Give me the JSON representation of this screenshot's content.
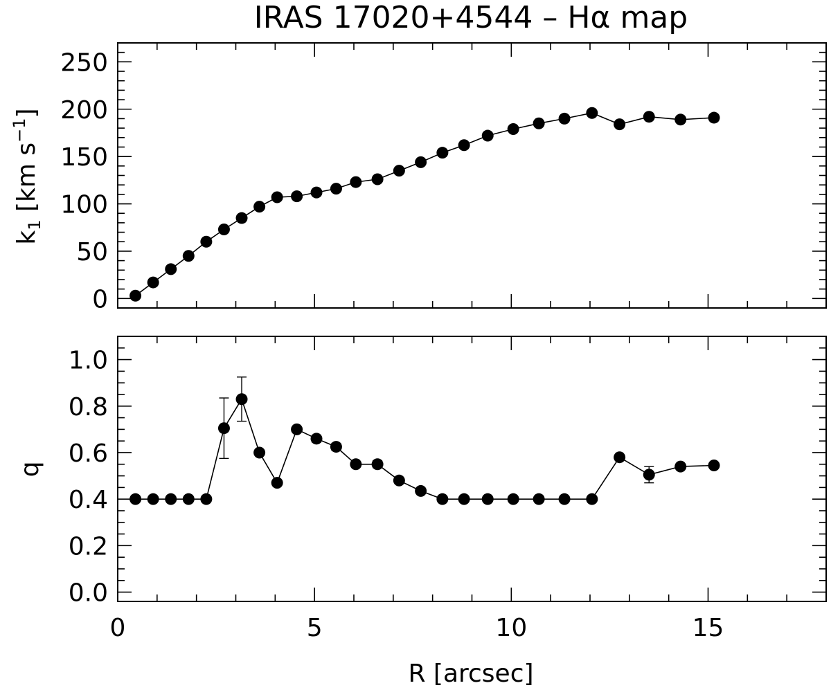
{
  "title": "IRAS 17020+4544 – Hα map",
  "chart_data": [
    {
      "type": "scatter",
      "panel": "top",
      "ylabel_main": "k",
      "ylabel_sub": "1",
      "ylabel_unit": " [km s",
      "ylabel_sup": "−1",
      "ylabel_close": "]",
      "xlim": [
        0,
        18
      ],
      "ylim": [
        -10,
        270
      ],
      "yticks": [
        0,
        50,
        100,
        150,
        200,
        250
      ],
      "ytick_labels": [
        "0",
        "50",
        "100",
        "150",
        "200",
        "250"
      ],
      "yminor_step": 10,
      "xminor_step": 1,
      "line": true,
      "x": [
        0.45,
        0.9,
        1.35,
        1.8,
        2.25,
        2.7,
        3.15,
        3.6,
        4.05,
        4.55,
        5.05,
        5.55,
        6.05,
        6.6,
        7.15,
        7.7,
        8.25,
        8.8,
        9.4,
        10.05,
        10.7,
        11.35,
        12.05,
        12.75,
        13.5,
        14.3,
        15.15
      ],
      "y": [
        3,
        17,
        31,
        45,
        60,
        73,
        85,
        97,
        107,
        108,
        112,
        116,
        123,
        126,
        135,
        144,
        154,
        162,
        172,
        179,
        185,
        190,
        196,
        184,
        192,
        189,
        191
      ]
    },
    {
      "type": "scatter",
      "panel": "bottom",
      "ylabel": "q",
      "xlabel": "R [arcsec]",
      "xlim": [
        0,
        18
      ],
      "ylim": [
        -0.04,
        1.1
      ],
      "xticks": [
        0,
        5,
        10,
        15
      ],
      "xtick_labels": [
        "0",
        "5",
        "10",
        "15"
      ],
      "yticks": [
        0.0,
        0.2,
        0.4,
        0.6,
        0.8,
        1.0
      ],
      "ytick_labels": [
        "0.0",
        "0.2",
        "0.4",
        "0.6",
        "0.8",
        "1.0"
      ],
      "yminor_step": 0.05,
      "xminor_step": 1,
      "line": true,
      "x": [
        0.45,
        0.9,
        1.35,
        1.8,
        2.25,
        2.7,
        3.15,
        3.6,
        4.05,
        4.55,
        5.05,
        5.55,
        6.05,
        6.6,
        7.15,
        7.7,
        8.25,
        8.8,
        9.4,
        10.05,
        10.7,
        11.35,
        12.05,
        12.75,
        13.5,
        14.3,
        15.15
      ],
      "y": [
        0.4,
        0.4,
        0.4,
        0.4,
        0.4,
        0.705,
        0.83,
        0.6,
        0.47,
        0.7,
        0.66,
        0.625,
        0.55,
        0.55,
        0.48,
        0.435,
        0.4,
        0.4,
        0.4,
        0.4,
        0.4,
        0.4,
        0.4,
        0.58,
        0.505,
        0.54,
        0.545
      ],
      "yerr": [
        0,
        0,
        0,
        0,
        0,
        0.13,
        0.095,
        0,
        0,
        0,
        0.015,
        0.015,
        0,
        0.015,
        0,
        0,
        0,
        0,
        0,
        0,
        0,
        0,
        0,
        0,
        0.035,
        0,
        0
      ]
    }
  ]
}
